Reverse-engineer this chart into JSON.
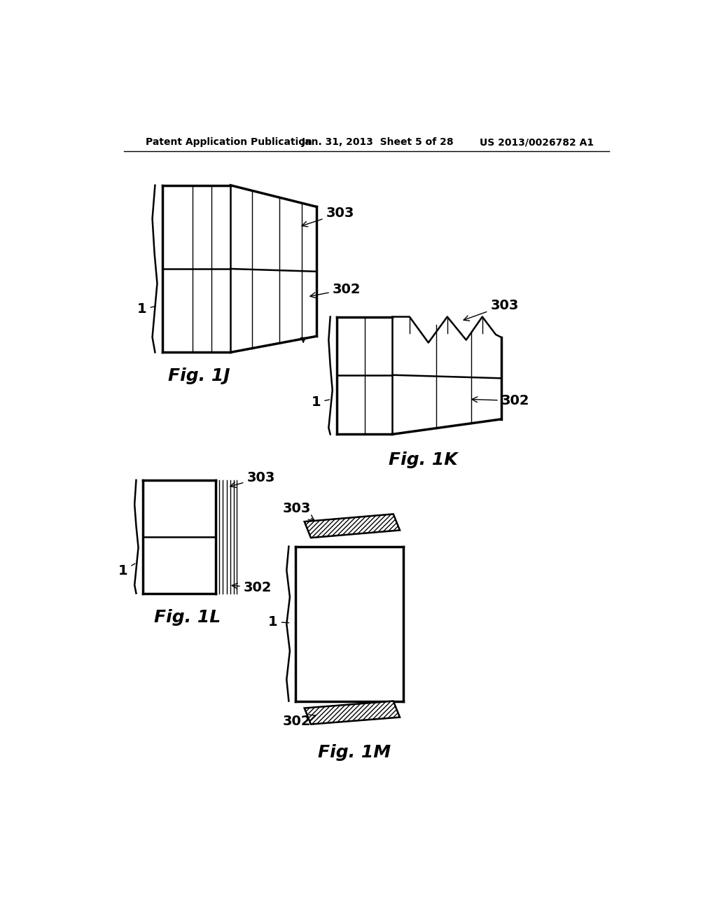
{
  "bg_color": "#ffffff",
  "header_left": "Patent Application Publication",
  "header_center": "Jan. 31, 2013  Sheet 5 of 28",
  "header_right": "US 2013/0026782 A1",
  "fig1j_label": "Fig. 1J",
  "fig1k_label": "Fig. 1K",
  "fig1l_label": "Fig. 1L",
  "fig1m_label": "Fig. 1M"
}
